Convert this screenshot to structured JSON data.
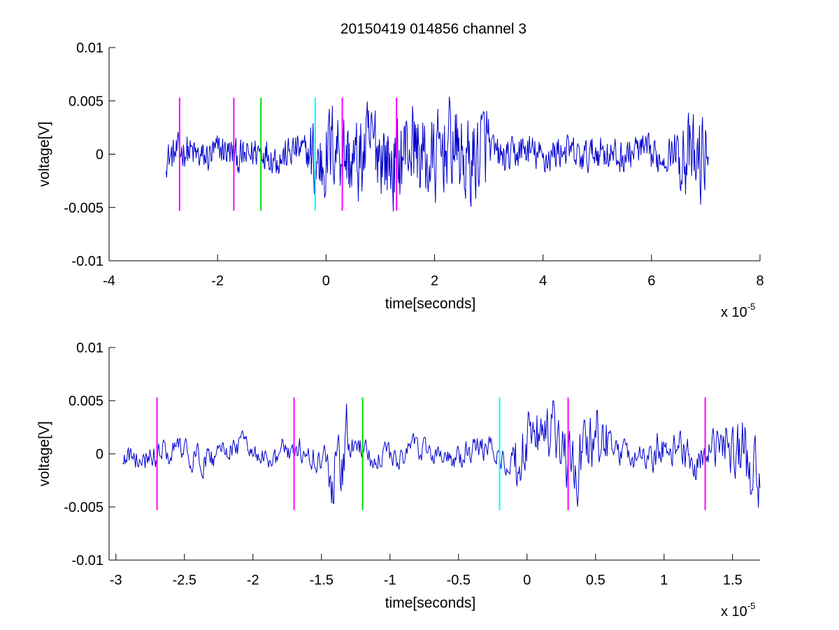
{
  "figure": {
    "title": "20150419 014856 channel 3"
  },
  "chart_data": [
    {
      "type": "line",
      "title": "20150419 014856 channel 3",
      "xlabel": "time[seconds]",
      "ylabel": "voltage[V]",
      "x_multiplier_label": "x 10",
      "x_multiplier_exp": "-5",
      "xlim": [
        -4,
        8
      ],
      "ylim": [
        -0.01,
        0.01
      ],
      "xticks": [
        -4,
        -2,
        0,
        2,
        4,
        6,
        8
      ],
      "xtick_labels": [
        "-4",
        "-2",
        "0",
        "2",
        "4",
        "6",
        "8"
      ],
      "yticks": [
        -0.01,
        -0.005,
        0,
        0.005,
        0.01
      ],
      "ytick_labels": [
        "-0.01",
        "-0.005",
        "0",
        "0.005",
        "0.01"
      ],
      "series_color": "#0000cc",
      "signal_x_range": [
        -2.95,
        7.05
      ],
      "signal_amplitude": 0.001,
      "signal_peak_amplitude": 0.004,
      "markers": [
        {
          "x": -2.7,
          "color": "#ff00ff",
          "y0": -0.0053,
          "y1": 0.0053
        },
        {
          "x": -1.7,
          "color": "#ff00ff",
          "y0": -0.0053,
          "y1": 0.0053
        },
        {
          "x": -1.2,
          "color": "#00dd00",
          "y0": -0.0053,
          "y1": 0.0053
        },
        {
          "x": -0.2,
          "color": "#00ffff",
          "y0": -0.0053,
          "y1": 0.0053
        },
        {
          "x": 0.3,
          "color": "#ff00ff",
          "y0": -0.0053,
          "y1": 0.0053
        },
        {
          "x": 1.3,
          "color": "#ff00ff",
          "y0": -0.0053,
          "y1": 0.0053
        }
      ],
      "grid": false,
      "box": false
    },
    {
      "type": "line",
      "title": "",
      "xlabel": "time[seconds]",
      "ylabel": "voltage[V]",
      "x_multiplier_label": "x 10",
      "x_multiplier_exp": "-5",
      "xlim": [
        -3.05,
        1.7
      ],
      "ylim": [
        -0.01,
        0.01
      ],
      "xticks": [
        -3,
        -2.5,
        -2,
        -1.5,
        -1,
        -0.5,
        0,
        0.5,
        1,
        1.5
      ],
      "xtick_labels": [
        "-3",
        "-2.5",
        "-2",
        "-1.5",
        "-1",
        "-0.5",
        "0",
        "0.5",
        "1",
        "1.5"
      ],
      "yticks": [
        -0.01,
        -0.005,
        0,
        0.005,
        0.01
      ],
      "ytick_labels": [
        "-0.01",
        "-0.005",
        "0",
        "0.005",
        "0.01"
      ],
      "series_color": "#0000cc",
      "signal_x_range": [
        -2.95,
        1.7
      ],
      "signal_amplitude": 0.001,
      "signal_peak_amplitude": 0.0048,
      "markers": [
        {
          "x": -2.7,
          "color": "#ff00ff",
          "y0": -0.0053,
          "y1": 0.0053
        },
        {
          "x": -1.7,
          "color": "#ff00ff",
          "y0": -0.0053,
          "y1": 0.0053
        },
        {
          "x": -1.2,
          "color": "#00dd00",
          "y0": -0.0053,
          "y1": 0.0053
        },
        {
          "x": -0.2,
          "color": "#00ffff",
          "y0": -0.0053,
          "y1": 0.0053
        },
        {
          "x": 0.3,
          "color": "#ff00ff",
          "y0": -0.0053,
          "y1": 0.0053
        },
        {
          "x": 1.3,
          "color": "#ff00ff",
          "y0": -0.0053,
          "y1": 0.0053
        }
      ],
      "grid": false,
      "box": false
    }
  ]
}
